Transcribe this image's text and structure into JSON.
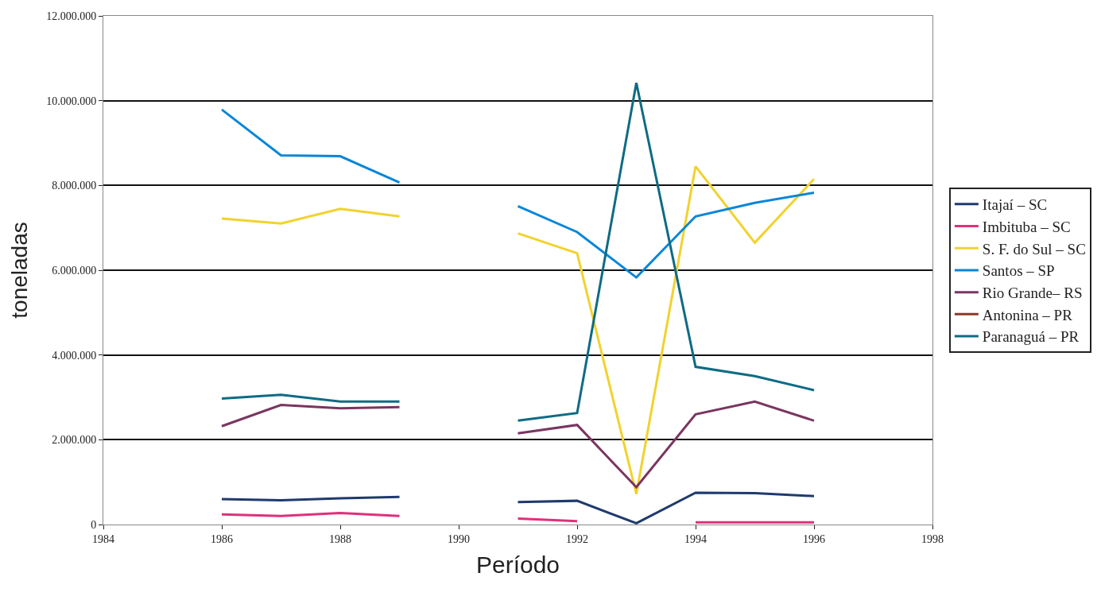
{
  "chart_data": {
    "type": "line",
    "xlabel": "Período",
    "ylabel": "toneladas",
    "x": [
      1986,
      1987,
      1988,
      1989,
      1990,
      1991,
      1992,
      1993,
      1994,
      1995,
      1996
    ],
    "xlim": [
      1984,
      1998
    ],
    "xticks": [
      1984,
      1986,
      1988,
      1990,
      1992,
      1994,
      1996,
      1998
    ],
    "ylim": [
      0,
      12000000
    ],
    "yticks": [
      {
        "value": 0,
        "label": "0"
      },
      {
        "value": 2000000,
        "label": "2.000.000"
      },
      {
        "value": 4000000,
        "label": "4.000.000"
      },
      {
        "value": 6000000,
        "label": "6.000.000"
      },
      {
        "value": 8000000,
        "label": "8.000.000"
      },
      {
        "value": 10000000,
        "label": "10.000.000"
      },
      {
        "value": 12000000,
        "label": "12.000.000"
      }
    ],
    "grid": "y",
    "legend": "right",
    "marker": "none",
    "line_style": "solid",
    "series": [
      {
        "name": "Itajaí – SC",
        "color": "#1f3a6e",
        "values": [
          600000,
          570000,
          620000,
          650000,
          null,
          530000,
          560000,
          30000,
          750000,
          740000,
          670000
        ]
      },
      {
        "name": "Imbituba – SC",
        "color": "#e0307a",
        "values": [
          240000,
          200000,
          270000,
          200000,
          null,
          140000,
          80000,
          null,
          50000,
          50000,
          50000
        ]
      },
      {
        "name": "S. F. do Sul – SC",
        "color": "#f2d22e",
        "values": [
          7220000,
          7100000,
          7450000,
          7270000,
          null,
          6870000,
          6400000,
          720000,
          8450000,
          6650000,
          8150000
        ]
      },
      {
        "name": "Santos – SP",
        "color": "#0a86d8",
        "values": [
          9790000,
          8710000,
          8690000,
          8070000,
          null,
          7510000,
          6900000,
          5830000,
          7270000,
          7590000,
          7830000
        ]
      },
      {
        "name": "Rio Grande– RS",
        "color": "#7a3560",
        "values": [
          2320000,
          2820000,
          2740000,
          2770000,
          null,
          2150000,
          2350000,
          880000,
          2600000,
          2900000,
          2450000
        ]
      },
      {
        "name": "Antonina – PR",
        "color": "#8b3a2a",
        "values": [
          null,
          null,
          null,
          null,
          null,
          null,
          null,
          null,
          null,
          null,
          null
        ]
      },
      {
        "name": "Paranaguá – PR",
        "color": "#0e6b84",
        "values": [
          2970000,
          3060000,
          2900000,
          2900000,
          null,
          2450000,
          2630000,
          10420000,
          3720000,
          3500000,
          3170000
        ]
      }
    ]
  }
}
